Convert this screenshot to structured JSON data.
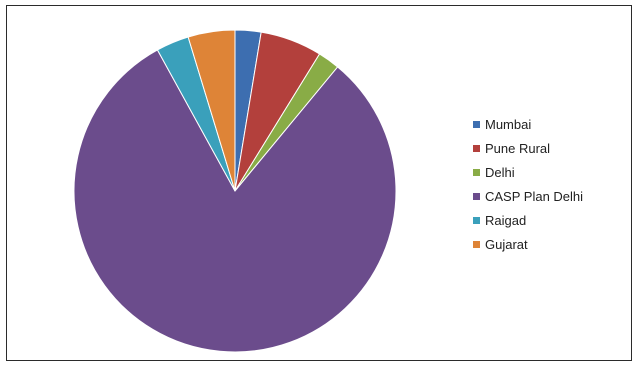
{
  "chart_data": {
    "type": "pie",
    "title": "",
    "legend_position": "right",
    "categories": [
      "Mumbai",
      "Pune Rural",
      "Delhi",
      "CASP Plan Delhi",
      "Raigad",
      "Gujarat"
    ],
    "values": [
      2.6,
      6.2,
      2.2,
      81.0,
      3.3,
      4.7
    ],
    "colors": [
      "#3d6eb0",
      "#b3403c",
      "#89ac46",
      "#6b4c8c",
      "#3aa0bb",
      "#de8437"
    ],
    "start_angle_deg": 0,
    "direction": "clockwise"
  }
}
